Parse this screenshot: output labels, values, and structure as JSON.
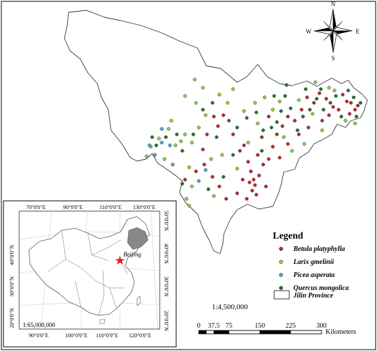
{
  "compass": {
    "n": "N",
    "s": "S",
    "e": "E",
    "w": "W"
  },
  "legend": {
    "title": "Legend",
    "items": [
      {
        "label": "Betula platyphylla",
        "color": "#c0272d"
      },
      {
        "label": "Larix gmelinii",
        "color": "#8fd13f"
      },
      {
        "label": "Picea asperata",
        "color": "#4aa8d8"
      },
      {
        "label": "Quercus mongolica",
        "color": "#1f7a2e"
      }
    ],
    "province_label": "Jilin Province"
  },
  "main_scale": "1:4,500,000",
  "scale_bar": {
    "ticks": [
      "0",
      "37.5",
      "75",
      "150",
      "225",
      "300"
    ],
    "unit": "Kilometers"
  },
  "inset": {
    "scale": "1:65,000,000",
    "top_lon": [
      "70°0'0\"E",
      "90°0'0\"E",
      "110°0'0\"E",
      "130°0'0\"E"
    ],
    "bottom_lon": [
      "90°0'0\"E",
      "100°0'0\"E",
      "110°0'0\"E",
      "120°0'0\"E"
    ],
    "left_lat": [
      "40°0'0\"N",
      "30°0'0\"N",
      "20°0'0\"N"
    ],
    "right_lat": [
      "50°0'0\"N",
      "40°0'0\"N",
      "30°0'0\"N",
      "20°0'0\"N"
    ],
    "city": "Beijing"
  }
}
